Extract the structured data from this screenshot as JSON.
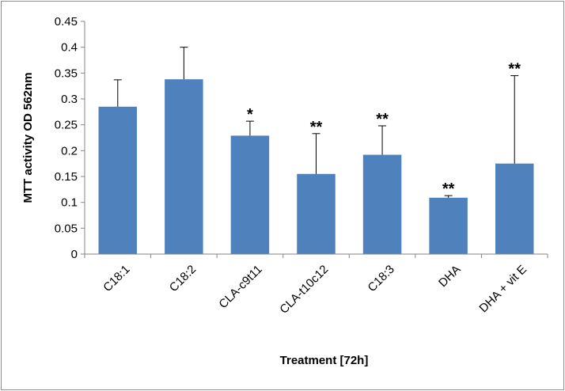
{
  "chart_data": {
    "type": "bar",
    "title": "",
    "xlabel": "Treatment [72h]",
    "ylabel": "MTT activity OD 562nm",
    "ylim": [
      0,
      0.45
    ],
    "yticks": [
      "0",
      "0.05",
      "0.1",
      "0.15",
      "0.2",
      "0.25",
      "0.3",
      "0.35",
      "0.4",
      "0.45"
    ],
    "grid": false,
    "legend": "none",
    "bar_color": "#4f81bd",
    "categories": [
      "C18:1",
      "C18:2",
      "CLA-c9t11",
      "CLA-t10c12",
      "C18:3",
      "DHA",
      "DHA + vit E"
    ],
    "values": [
      0.285,
      0.338,
      0.229,
      0.155,
      0.192,
      0.109,
      0.175
    ],
    "error_upper": [
      0.052,
      0.062,
      0.028,
      0.078,
      0.056,
      0.004,
      0.17
    ],
    "significance": [
      "",
      "",
      "*",
      "**",
      "**",
      "**",
      "**"
    ]
  }
}
